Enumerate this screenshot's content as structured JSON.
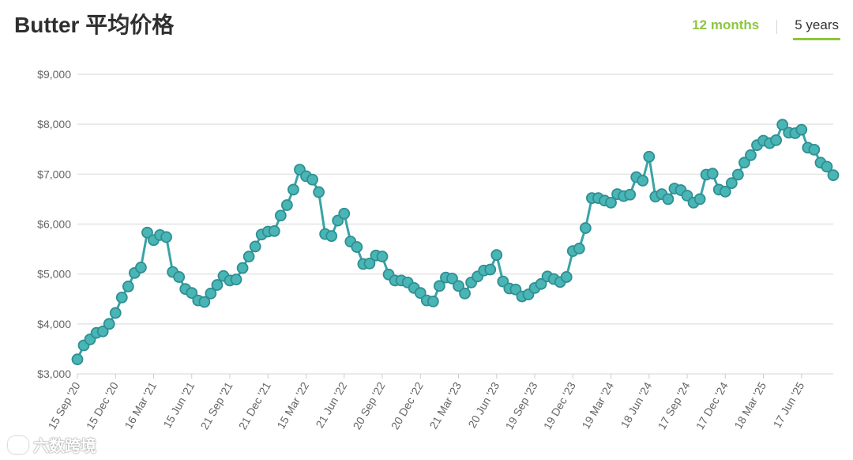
{
  "page": {
    "title": "Butter 平均价格",
    "tabs": [
      {
        "label": "12 months",
        "active": false
      },
      {
        "label": "5 years",
        "active": true
      }
    ],
    "watermark": "六数跨境"
  },
  "colors": {
    "line": "#3aa3a6",
    "marker_fill": "#4ab5b5",
    "marker_stroke": "#2e8f93",
    "grid": "#e4e4e4",
    "accent": "#8cc63f",
    "tick_text": "#666666"
  },
  "chart_data": {
    "type": "line",
    "title": "Butter 平均价格",
    "xlabel": "",
    "ylabel": "",
    "ylim": [
      3000,
      9000
    ],
    "yticks": [
      3000,
      4000,
      5000,
      6000,
      7000,
      8000,
      9000
    ],
    "ytick_labels": [
      "$3,000",
      "$4,000",
      "$5,000",
      "$6,000",
      "$7,000",
      "$8,000",
      "$9,000"
    ],
    "xtick_labels": [
      "15 Sep '20",
      "15 Dec '20",
      "16 Mar '21",
      "15 Jun '21",
      "21 Sep '21",
      "21 Dec '21",
      "15 Mar '22",
      "21 Jun '22",
      "20 Sep '22",
      "20 Dec '22",
      "21 Mar '23",
      "20 Jun '23",
      "19 Sep '23",
      "19 Dec '23",
      "19 Mar '24",
      "18 Jun '24",
      "17 Sep '24",
      "17 Dec '24",
      "18 Mar '25",
      "17 Jun '25"
    ],
    "xtick_every": 6,
    "grid": true,
    "legend": false,
    "series": [
      {
        "values": [
          3290,
          3570,
          3690,
          3820,
          3850,
          4000,
          4220,
          4530,
          4750,
          5020,
          5130,
          5830,
          5680,
          5780,
          5740,
          5040,
          4940,
          4700,
          4620,
          4470,
          4440,
          4610,
          4780,
          4960,
          4870,
          4890,
          5120,
          5350,
          5550,
          5790,
          5850,
          5860,
          6170,
          6380,
          6690,
          7090,
          6960,
          6890,
          6640,
          5800,
          5760,
          6070,
          6210,
          5650,
          5540,
          5200,
          5210,
          5370,
          5350,
          4990,
          4870,
          4870,
          4830,
          4720,
          4620,
          4470,
          4450,
          4760,
          4930,
          4910,
          4760,
          4610,
          4830,
          4950,
          5070,
          5090,
          5380,
          4850,
          4710,
          4690,
          4550,
          4590,
          4720,
          4800,
          4950,
          4900,
          4840,
          4940,
          5460,
          5510,
          5920,
          6520,
          6520,
          6470,
          6430,
          6600,
          6560,
          6590,
          6940,
          6870,
          7350,
          6550,
          6600,
          6500,
          6710,
          6680,
          6570,
          6430,
          6500,
          6990,
          7010,
          6690,
          6650,
          6820,
          6990,
          7230,
          7380,
          7580,
          7670,
          7620,
          7680,
          7990,
          7830,
          7820,
          7890,
          7530,
          7490,
          7230,
          7150,
          6980
        ]
      }
    ]
  }
}
